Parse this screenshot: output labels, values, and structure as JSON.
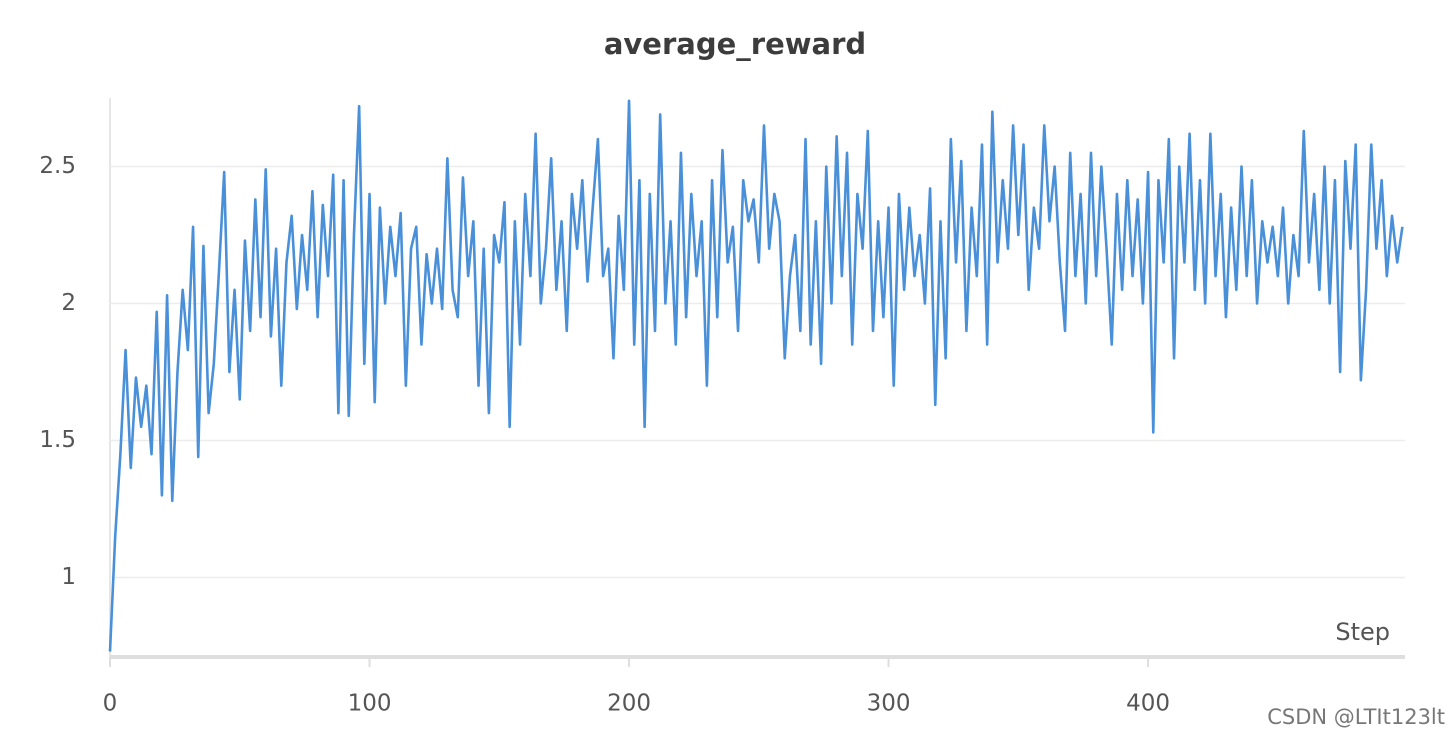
{
  "chart_data": {
    "type": "line",
    "title": "average_reward",
    "xlabel": "Step",
    "watermark": "CSDN @LTIt123lt",
    "color": "#4a90d9",
    "grid": true,
    "xlim": [
      0,
      499
    ],
    "ylim": [
      0.71,
      2.75
    ],
    "xticks": [
      0,
      100,
      200,
      300,
      400
    ],
    "yticks": [
      1,
      1.5,
      2,
      2.5
    ],
    "x": [
      0,
      2,
      4,
      6,
      8,
      10,
      12,
      14,
      16,
      18,
      20,
      22,
      24,
      26,
      28,
      30,
      32,
      34,
      36,
      38,
      40,
      42,
      44,
      46,
      48,
      50,
      52,
      54,
      56,
      58,
      60,
      62,
      64,
      66,
      68,
      70,
      72,
      74,
      76,
      78,
      80,
      82,
      84,
      86,
      88,
      90,
      92,
      94,
      96,
      98,
      100,
      102,
      104,
      106,
      108,
      110,
      112,
      114,
      116,
      118,
      120,
      122,
      124,
      126,
      128,
      130,
      132,
      134,
      136,
      138,
      140,
      142,
      144,
      146,
      148,
      150,
      152,
      154,
      156,
      158,
      160,
      162,
      164,
      166,
      168,
      170,
      172,
      174,
      176,
      178,
      180,
      182,
      184,
      186,
      188,
      190,
      192,
      194,
      196,
      198,
      200,
      202,
      204,
      206,
      208,
      210,
      212,
      214,
      216,
      218,
      220,
      222,
      224,
      226,
      228,
      230,
      232,
      234,
      236,
      238,
      240,
      242,
      244,
      246,
      248,
      250,
      252,
      254,
      256,
      258,
      260,
      262,
      264,
      266,
      268,
      270,
      272,
      274,
      276,
      278,
      280,
      282,
      284,
      286,
      288,
      290,
      292,
      294,
      296,
      298,
      300,
      302,
      304,
      306,
      308,
      310,
      312,
      314,
      316,
      318,
      320,
      322,
      324,
      326,
      328,
      330,
      332,
      334,
      336,
      338,
      340,
      342,
      344,
      346,
      348,
      350,
      352,
      354,
      356,
      358,
      360,
      362,
      364,
      366,
      368,
      370,
      372,
      374,
      376,
      378,
      380,
      382,
      384,
      386,
      388,
      390,
      392,
      394,
      396,
      398,
      400,
      402,
      404,
      406,
      408,
      410,
      412,
      414,
      416,
      418,
      420,
      422,
      424,
      426,
      428,
      430,
      432,
      434,
      436,
      438,
      440,
      442,
      444,
      446,
      448,
      450,
      452,
      454,
      456,
      458,
      460,
      462,
      464,
      466,
      468,
      470,
      472,
      474,
      476,
      478,
      480,
      482,
      484,
      486,
      488,
      490,
      492,
      494,
      496,
      498
    ],
    "values": [
      0.73,
      1.15,
      1.45,
      1.83,
      1.4,
      1.73,
      1.55,
      1.7,
      1.45,
      1.97,
      1.3,
      2.03,
      1.28,
      1.75,
      2.05,
      1.83,
      2.28,
      1.44,
      2.21,
      1.6,
      1.78,
      2.12,
      2.48,
      1.75,
      2.05,
      1.65,
      2.23,
      1.9,
      2.38,
      1.95,
      2.49,
      1.88,
      2.2,
      1.7,
      2.15,
      2.32,
      1.98,
      2.25,
      2.05,
      2.41,
      1.95,
      2.36,
      2.1,
      2.47,
      1.6,
      2.45,
      1.59,
      2.25,
      2.72,
      1.78,
      2.4,
      1.64,
      2.35,
      2.0,
      2.28,
      2.1,
      2.33,
      1.7,
      2.2,
      2.28,
      1.85,
      2.18,
      2.0,
      2.2,
      1.98,
      2.53,
      2.05,
      1.95,
      2.46,
      2.1,
      2.3,
      1.7,
      2.2,
      1.6,
      2.25,
      2.15,
      2.37,
      1.55,
      2.3,
      1.85,
      2.4,
      2.1,
      2.62,
      2.0,
      2.2,
      2.53,
      2.05,
      2.3,
      1.9,
      2.4,
      2.2,
      2.45,
      2.08,
      2.35,
      2.6,
      2.1,
      2.2,
      1.8,
      2.32,
      2.05,
      2.74,
      1.85,
      2.45,
      1.55,
      2.4,
      1.9,
      2.69,
      2.0,
      2.3,
      1.85,
      2.55,
      1.95,
      2.4,
      2.1,
      2.3,
      1.7,
      2.45,
      1.95,
      2.56,
      2.15,
      2.28,
      1.9,
      2.45,
      2.3,
      2.38,
      2.15,
      2.65,
      2.2,
      2.4,
      2.3,
      1.8,
      2.1,
      2.25,
      1.9,
      2.6,
      1.85,
      2.3,
      1.78,
      2.5,
      2.0,
      2.61,
      2.1,
      2.55,
      1.85,
      2.4,
      2.2,
      2.63,
      1.9,
      2.3,
      1.95,
      2.35,
      1.7,
      2.4,
      2.05,
      2.35,
      2.1,
      2.25,
      2.0,
      2.42,
      1.63,
      2.3,
      1.8,
      2.6,
      2.15,
      2.52,
      1.9,
      2.35,
      2.1,
      2.58,
      1.85,
      2.7,
      2.15,
      2.45,
      2.2,
      2.65,
      2.25,
      2.58,
      2.05,
      2.35,
      2.2,
      2.65,
      2.3,
      2.5,
      2.15,
      1.9,
      2.55,
      2.1,
      2.4,
      2.0,
      2.55,
      2.1,
      2.5,
      2.2,
      1.85,
      2.4,
      2.05,
      2.45,
      2.1,
      2.38,
      2.0,
      2.48,
      1.53,
      2.45,
      2.15,
      2.6,
      1.8,
      2.5,
      2.15,
      2.62,
      2.05,
      2.45,
      2.0,
      2.62,
      2.1,
      2.4,
      1.95,
      2.35,
      2.05,
      2.5,
      2.1,
      2.45,
      2.0,
      2.3,
      2.15,
      2.28,
      2.1,
      2.35,
      2.0,
      2.25,
      2.1,
      2.63,
      2.15,
      2.4,
      2.05,
      2.5,
      2.0,
      2.45,
      1.75,
      2.52,
      2.2,
      2.58,
      1.72,
      2.05,
      2.58,
      2.2,
      2.45,
      2.1,
      2.32,
      2.15,
      2.28
    ]
  }
}
